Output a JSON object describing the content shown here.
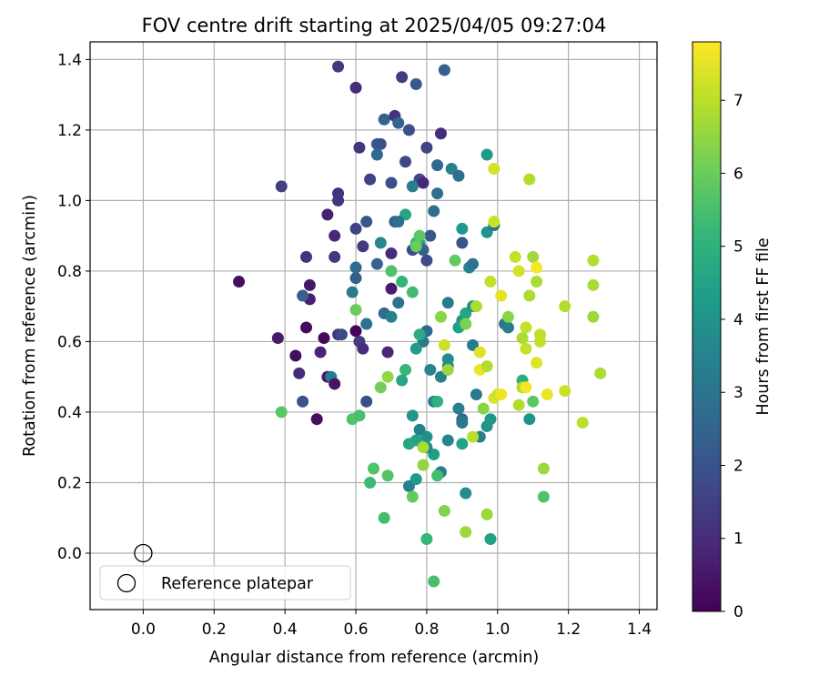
{
  "chart_data": {
    "type": "scatter",
    "title": "FOV centre drift starting at 2025/04/05 09:27:04",
    "xlabel": "Angular distance from reference (arcmin)",
    "ylabel": "Rotation from reference (arcmin)",
    "xlim": [
      -0.15,
      1.45
    ],
    "ylim": [
      -0.16,
      1.45
    ],
    "xticks": [
      0.0,
      0.2,
      0.4,
      0.6,
      0.8,
      1.0,
      1.2,
      1.4
    ],
    "yticks": [
      0.0,
      0.2,
      0.4,
      0.6,
      0.8,
      1.0,
      1.2,
      1.4
    ],
    "xtick_labels": [
      "0.0",
      "0.2",
      "0.4",
      "0.6",
      "0.8",
      "1.0",
      "1.2",
      "1.4"
    ],
    "ytick_labels": [
      "0.0",
      "0.2",
      "0.4",
      "0.6",
      "0.8",
      "1.0",
      "1.2",
      "1.4"
    ],
    "grid": true,
    "colormap": "viridis",
    "colorbar": {
      "label": "Hours from first FF file",
      "range": [
        0,
        7.8
      ],
      "ticks": [
        0,
        1,
        2,
        3,
        4,
        5,
        6,
        7
      ],
      "tick_labels": [
        "0",
        "1",
        "2",
        "3",
        "4",
        "5",
        "6",
        "7"
      ]
    },
    "legend": {
      "position": "lower-left",
      "entries": [
        "Reference platepar"
      ]
    },
    "reference_point": {
      "x": 0.0,
      "y": 0.0,
      "marker": "open-circle",
      "label": "Reference platepar"
    },
    "points": [
      {
        "x": 0.27,
        "y": 0.77,
        "h": 0.3
      },
      {
        "x": 0.38,
        "y": 0.61,
        "h": 0.6
      },
      {
        "x": 0.43,
        "y": 0.56,
        "h": 0.3
      },
      {
        "x": 0.44,
        "y": 0.51,
        "h": 1.0
      },
      {
        "x": 0.45,
        "y": 0.43,
        "h": 2.0
      },
      {
        "x": 0.46,
        "y": 0.64,
        "h": 0.2
      },
      {
        "x": 0.47,
        "y": 0.76,
        "h": 0.5
      },
      {
        "x": 0.47,
        "y": 0.72,
        "h": 0.7
      },
      {
        "x": 0.49,
        "y": 0.38,
        "h": 0.3
      },
      {
        "x": 0.5,
        "y": 0.57,
        "h": 0.8
      },
      {
        "x": 0.51,
        "y": 0.61,
        "h": 0.2
      },
      {
        "x": 0.52,
        "y": 0.5,
        "h": 0.5
      },
      {
        "x": 0.53,
        "y": 0.5,
        "h": 3.2
      },
      {
        "x": 0.54,
        "y": 0.48,
        "h": 0.4
      },
      {
        "x": 0.55,
        "y": 0.62,
        "h": 1.2
      },
      {
        "x": 0.56,
        "y": 0.62,
        "h": 1.8
      },
      {
        "x": 0.6,
        "y": 0.63,
        "h": 0.1
      },
      {
        "x": 0.61,
        "y": 0.6,
        "h": 1.4
      },
      {
        "x": 0.62,
        "y": 0.58,
        "h": 1.0
      },
      {
        "x": 0.63,
        "y": 0.43,
        "h": 1.9
      },
      {
        "x": 0.69,
        "y": 0.57,
        "h": 0.9
      },
      {
        "x": 0.7,
        "y": 0.75,
        "h": 0.6
      },
      {
        "x": 0.39,
        "y": 1.04,
        "h": 1.5
      },
      {
        "x": 0.45,
        "y": 0.73,
        "h": 2.4
      },
      {
        "x": 0.46,
        "y": 0.84,
        "h": 1.1
      },
      {
        "x": 0.52,
        "y": 0.96,
        "h": 0.7
      },
      {
        "x": 0.54,
        "y": 0.9,
        "h": 0.9
      },
      {
        "x": 0.54,
        "y": 0.84,
        "h": 1.3
      },
      {
        "x": 0.55,
        "y": 1.0,
        "h": 1.2
      },
      {
        "x": 0.55,
        "y": 1.02,
        "h": 1.1
      },
      {
        "x": 0.55,
        "y": 1.38,
        "h": 1.3
      },
      {
        "x": 0.6,
        "y": 0.92,
        "h": 1.6
      },
      {
        "x": 0.6,
        "y": 1.32,
        "h": 1.0
      },
      {
        "x": 0.61,
        "y": 1.15,
        "h": 1.2
      },
      {
        "x": 0.62,
        "y": 0.87,
        "h": 1.3
      },
      {
        "x": 0.63,
        "y": 0.94,
        "h": 2.1
      },
      {
        "x": 0.64,
        "y": 1.06,
        "h": 1.6
      },
      {
        "x": 0.66,
        "y": 1.16,
        "h": 2.2
      },
      {
        "x": 0.67,
        "y": 1.16,
        "h": 2.0
      },
      {
        "x": 0.68,
        "y": 1.23,
        "h": 2.4
      },
      {
        "x": 0.7,
        "y": 1.05,
        "h": 1.9
      },
      {
        "x": 0.7,
        "y": 0.85,
        "h": 1.0
      },
      {
        "x": 0.71,
        "y": 0.94,
        "h": 2.4
      },
      {
        "x": 0.71,
        "y": 1.24,
        "h": 1.1
      },
      {
        "x": 0.72,
        "y": 1.22,
        "h": 2.5
      },
      {
        "x": 0.73,
        "y": 1.35,
        "h": 1.4
      },
      {
        "x": 0.74,
        "y": 1.11,
        "h": 1.7
      },
      {
        "x": 0.75,
        "y": 1.2,
        "h": 1.9
      },
      {
        "x": 0.77,
        "y": 1.33,
        "h": 2.2
      },
      {
        "x": 0.78,
        "y": 1.06,
        "h": 1.8
      },
      {
        "x": 0.79,
        "y": 1.05,
        "h": 0.9
      },
      {
        "x": 0.8,
        "y": 1.15,
        "h": 1.6
      },
      {
        "x": 0.84,
        "y": 1.19,
        "h": 1.0
      },
      {
        "x": 0.85,
        "y": 1.37,
        "h": 2.4
      },
      {
        "x": 0.66,
        "y": 1.13,
        "h": 2.6
      },
      {
        "x": 0.67,
        "y": 0.88,
        "h": 3.6
      },
      {
        "x": 0.66,
        "y": 0.82,
        "h": 2.5
      },
      {
        "x": 0.6,
        "y": 0.78,
        "h": 2.3
      },
      {
        "x": 0.6,
        "y": 0.81,
        "h": 2.7
      },
      {
        "x": 0.59,
        "y": 0.74,
        "h": 3.2
      },
      {
        "x": 0.63,
        "y": 0.65,
        "h": 2.9
      },
      {
        "x": 0.68,
        "y": 0.68,
        "h": 2.7
      },
      {
        "x": 0.7,
        "y": 0.67,
        "h": 3.4
      },
      {
        "x": 0.72,
        "y": 0.71,
        "h": 3.0
      },
      {
        "x": 0.74,
        "y": 0.96,
        "h": 4.6
      },
      {
        "x": 0.72,
        "y": 0.94,
        "h": 2.9
      },
      {
        "x": 0.76,
        "y": 0.86,
        "h": 1.7
      },
      {
        "x": 0.76,
        "y": 1.04,
        "h": 3.3
      },
      {
        "x": 0.78,
        "y": 0.88,
        "h": 4.4
      },
      {
        "x": 0.77,
        "y": 0.88,
        "h": 5.1
      },
      {
        "x": 0.79,
        "y": 0.86,
        "h": 2.4
      },
      {
        "x": 0.8,
        "y": 0.83,
        "h": 1.8
      },
      {
        "x": 0.81,
        "y": 0.9,
        "h": 2.1
      },
      {
        "x": 0.82,
        "y": 0.97,
        "h": 2.8
      },
      {
        "x": 0.83,
        "y": 1.02,
        "h": 2.8
      },
      {
        "x": 0.83,
        "y": 1.1,
        "h": 2.6
      },
      {
        "x": 0.86,
        "y": 0.71,
        "h": 3.2
      },
      {
        "x": 0.87,
        "y": 1.09,
        "h": 3.4
      },
      {
        "x": 0.89,
        "y": 1.07,
        "h": 2.8
      },
      {
        "x": 0.9,
        "y": 0.92,
        "h": 4.2
      },
      {
        "x": 0.9,
        "y": 0.88,
        "h": 2.0
      },
      {
        "x": 0.92,
        "y": 0.81,
        "h": 3.5
      },
      {
        "x": 0.93,
        "y": 0.82,
        "h": 3.0
      },
      {
        "x": 0.97,
        "y": 0.91,
        "h": 4.0
      },
      {
        "x": 0.97,
        "y": 1.13,
        "h": 4.2
      },
      {
        "x": 0.99,
        "y": 0.93,
        "h": 3.0
      },
      {
        "x": 0.8,
        "y": 0.63,
        "h": 2.7
      },
      {
        "x": 0.79,
        "y": 0.6,
        "h": 3.2
      },
      {
        "x": 0.77,
        "y": 0.58,
        "h": 4.3
      },
      {
        "x": 0.78,
        "y": 0.62,
        "h": 4.8
      },
      {
        "x": 0.81,
        "y": 0.52,
        "h": 3.6
      },
      {
        "x": 0.84,
        "y": 0.5,
        "h": 3.4
      },
      {
        "x": 0.86,
        "y": 0.53,
        "h": 3.3
      },
      {
        "x": 0.86,
        "y": 0.55,
        "h": 3.8
      },
      {
        "x": 0.89,
        "y": 0.64,
        "h": 4.4
      },
      {
        "x": 0.9,
        "y": 0.66,
        "h": 4.1
      },
      {
        "x": 0.91,
        "y": 0.68,
        "h": 4.6
      },
      {
        "x": 0.93,
        "y": 0.7,
        "h": 3.9
      },
      {
        "x": 0.93,
        "y": 0.59,
        "h": 3.2
      },
      {
        "x": 0.94,
        "y": 0.45,
        "h": 3.2
      },
      {
        "x": 0.89,
        "y": 0.41,
        "h": 3.4
      },
      {
        "x": 0.9,
        "y": 0.38,
        "h": 2.6
      },
      {
        "x": 0.9,
        "y": 0.37,
        "h": 3.1
      },
      {
        "x": 0.86,
        "y": 0.32,
        "h": 3.6
      },
      {
        "x": 0.84,
        "y": 0.23,
        "h": 3.3
      },
      {
        "x": 0.82,
        "y": 0.28,
        "h": 4.3
      },
      {
        "x": 0.8,
        "y": 0.3,
        "h": 3.7
      },
      {
        "x": 0.8,
        "y": 0.33,
        "h": 3.9
      },
      {
        "x": 0.78,
        "y": 0.35,
        "h": 3.4
      },
      {
        "x": 0.77,
        "y": 0.32,
        "h": 4.5
      },
      {
        "x": 0.75,
        "y": 0.31,
        "h": 4.6
      },
      {
        "x": 0.76,
        "y": 0.39,
        "h": 4.1
      },
      {
        "x": 0.75,
        "y": 0.19,
        "h": 3.4
      },
      {
        "x": 0.77,
        "y": 0.21,
        "h": 4.2
      },
      {
        "x": 0.82,
        "y": 0.43,
        "h": 3.3
      },
      {
        "x": 0.83,
        "y": 0.43,
        "h": 5.0
      },
      {
        "x": 0.9,
        "y": 0.31,
        "h": 4.5
      },
      {
        "x": 0.91,
        "y": 0.17,
        "h": 3.8
      },
      {
        "x": 0.95,
        "y": 0.33,
        "h": 3.3
      },
      {
        "x": 0.97,
        "y": 0.36,
        "h": 4.0
      },
      {
        "x": 0.98,
        "y": 0.38,
        "h": 4.1
      },
      {
        "x": 1.02,
        "y": 0.65,
        "h": 2.9
      },
      {
        "x": 1.03,
        "y": 0.64,
        "h": 3.3
      },
      {
        "x": 1.09,
        "y": 0.38,
        "h": 4.0
      },
      {
        "x": 1.07,
        "y": 0.49,
        "h": 4.9
      },
      {
        "x": 0.82,
        "y": -0.08,
        "h": 5.5
      },
      {
        "x": 0.8,
        "y": 0.04,
        "h": 5.2
      },
      {
        "x": 0.98,
        "y": 0.04,
        "h": 4.5
      },
      {
        "x": 0.68,
        "y": 0.1,
        "h": 5.4
      },
      {
        "x": 0.64,
        "y": 0.2,
        "h": 5.3
      },
      {
        "x": 0.65,
        "y": 0.24,
        "h": 5.6
      },
      {
        "x": 0.69,
        "y": 0.22,
        "h": 5.7
      },
      {
        "x": 0.76,
        "y": 0.16,
        "h": 5.9
      },
      {
        "x": 0.83,
        "y": 0.22,
        "h": 5.4
      },
      {
        "x": 0.85,
        "y": 0.12,
        "h": 6.3
      },
      {
        "x": 0.91,
        "y": 0.06,
        "h": 6.6
      },
      {
        "x": 0.39,
        "y": 0.4,
        "h": 5.8
      },
      {
        "x": 0.59,
        "y": 0.38,
        "h": 5.6
      },
      {
        "x": 0.61,
        "y": 0.39,
        "h": 5.5
      },
      {
        "x": 0.6,
        "y": 0.69,
        "h": 6.0
      },
      {
        "x": 0.67,
        "y": 0.47,
        "h": 6.1
      },
      {
        "x": 0.69,
        "y": 0.5,
        "h": 6.5
      },
      {
        "x": 0.74,
        "y": 0.52,
        "h": 5.2
      },
      {
        "x": 0.73,
        "y": 0.49,
        "h": 4.6
      },
      {
        "x": 0.7,
        "y": 0.8,
        "h": 5.6
      },
      {
        "x": 0.73,
        "y": 0.77,
        "h": 5.1
      },
      {
        "x": 0.76,
        "y": 0.74,
        "h": 5.4
      },
      {
        "x": 0.77,
        "y": 0.87,
        "h": 6.0
      },
      {
        "x": 0.78,
        "y": 0.9,
        "h": 5.8
      },
      {
        "x": 0.79,
        "y": 0.3,
        "h": 6.8
      },
      {
        "x": 0.79,
        "y": 0.25,
        "h": 6.5
      },
      {
        "x": 0.84,
        "y": 0.67,
        "h": 6.4
      },
      {
        "x": 0.85,
        "y": 0.59,
        "h": 7.2
      },
      {
        "x": 0.86,
        "y": 0.52,
        "h": 6.6
      },
      {
        "x": 0.88,
        "y": 0.83,
        "h": 5.9
      },
      {
        "x": 0.91,
        "y": 0.65,
        "h": 6.2
      },
      {
        "x": 0.93,
        "y": 0.33,
        "h": 7.0
      },
      {
        "x": 0.94,
        "y": 0.7,
        "h": 6.8
      },
      {
        "x": 0.95,
        "y": 0.52,
        "h": 7.6
      },
      {
        "x": 0.95,
        "y": 0.57,
        "h": 7.4
      },
      {
        "x": 0.96,
        "y": 0.41,
        "h": 6.4
      },
      {
        "x": 0.97,
        "y": 0.53,
        "h": 6.9
      },
      {
        "x": 0.97,
        "y": 0.11,
        "h": 6.6
      },
      {
        "x": 0.98,
        "y": 0.77,
        "h": 7.1
      },
      {
        "x": 0.99,
        "y": 0.94,
        "h": 7.2
      },
      {
        "x": 0.99,
        "y": 1.09,
        "h": 7.3
      },
      {
        "x": 0.99,
        "y": 0.44,
        "h": 7.4
      },
      {
        "x": 1.0,
        "y": 0.45,
        "h": 7.2
      },
      {
        "x": 1.01,
        "y": 0.73,
        "h": 7.5
      },
      {
        "x": 1.01,
        "y": 0.45,
        "h": 7.6
      },
      {
        "x": 1.03,
        "y": 0.67,
        "h": 6.4
      },
      {
        "x": 1.05,
        "y": 0.84,
        "h": 7.1
      },
      {
        "x": 1.06,
        "y": 0.42,
        "h": 6.9
      },
      {
        "x": 1.06,
        "y": 0.8,
        "h": 7.3
      },
      {
        "x": 1.07,
        "y": 0.47,
        "h": 6.9
      },
      {
        "x": 1.07,
        "y": 0.61,
        "h": 6.8
      },
      {
        "x": 1.08,
        "y": 0.64,
        "h": 7.1
      },
      {
        "x": 1.08,
        "y": 0.58,
        "h": 7.1
      },
      {
        "x": 1.08,
        "y": 0.47,
        "h": 7.7
      },
      {
        "x": 1.09,
        "y": 1.06,
        "h": 6.9
      },
      {
        "x": 1.09,
        "y": 0.73,
        "h": 6.8
      },
      {
        "x": 1.1,
        "y": 0.84,
        "h": 6.7
      },
      {
        "x": 1.1,
        "y": 0.43,
        "h": 5.8
      },
      {
        "x": 1.11,
        "y": 0.77,
        "h": 6.8
      },
      {
        "x": 1.11,
        "y": 0.54,
        "h": 7.4
      },
      {
        "x": 1.11,
        "y": 0.81,
        "h": 7.7
      },
      {
        "x": 1.12,
        "y": 0.62,
        "h": 7.0
      },
      {
        "x": 1.12,
        "y": 0.6,
        "h": 7.1
      },
      {
        "x": 1.13,
        "y": 0.24,
        "h": 6.6
      },
      {
        "x": 1.13,
        "y": 0.16,
        "h": 5.6
      },
      {
        "x": 1.14,
        "y": 0.45,
        "h": 7.6
      },
      {
        "x": 1.19,
        "y": 0.46,
        "h": 7.2
      },
      {
        "x": 1.19,
        "y": 0.7,
        "h": 6.9
      },
      {
        "x": 1.24,
        "y": 0.37,
        "h": 7.0
      },
      {
        "x": 1.27,
        "y": 0.83,
        "h": 6.9
      },
      {
        "x": 1.27,
        "y": 0.76,
        "h": 6.8
      },
      {
        "x": 1.27,
        "y": 0.67,
        "h": 6.6
      },
      {
        "x": 1.29,
        "y": 0.51,
        "h": 6.8
      }
    ]
  }
}
